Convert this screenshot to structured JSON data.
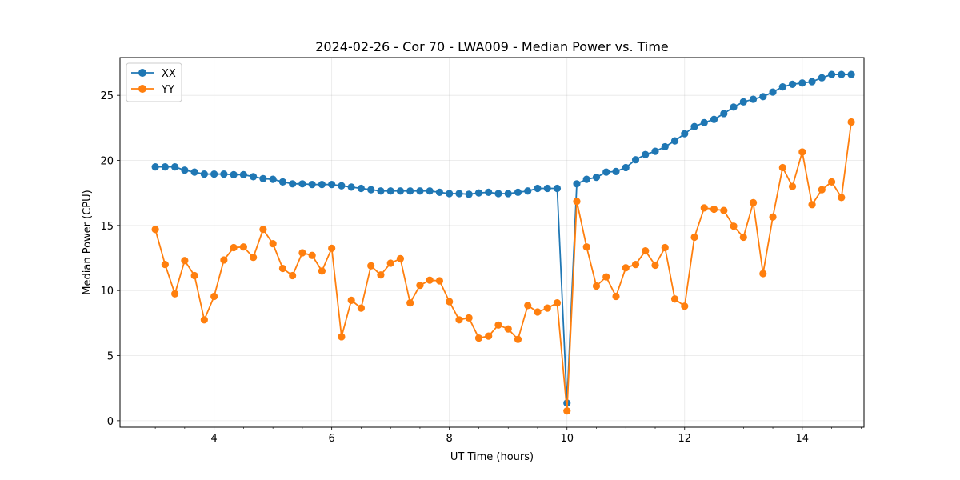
{
  "chart_data": {
    "type": "line",
    "title": "2024-02-26 - Cor 70 - LWA009 - Median Power vs. Time",
    "xlabel": "UT Time (hours)",
    "ylabel": "Median Power (CPU)",
    "xlim": [
      2.4,
      15.05
    ],
    "ylim": [
      -0.5,
      27.9
    ],
    "xticks": [
      4,
      6,
      8,
      10,
      12,
      14
    ],
    "yticks": [
      0,
      5,
      10,
      15,
      20,
      25
    ],
    "grid": true,
    "legend_position": "top-left",
    "x": [
      3.0,
      3.1667,
      3.3333,
      3.5,
      3.6667,
      3.8333,
      4.0,
      4.1667,
      4.3333,
      4.5,
      4.6667,
      4.8333,
      5.0,
      5.1667,
      5.3333,
      5.5,
      5.6667,
      5.8333,
      6.0,
      6.1667,
      6.3333,
      6.5,
      6.6667,
      6.8333,
      7.0,
      7.1667,
      7.3333,
      7.5,
      7.6667,
      7.8333,
      8.0,
      8.1667,
      8.3333,
      8.5,
      8.6667,
      8.8333,
      9.0,
      9.1667,
      9.3333,
      9.5,
      9.6667,
      9.8333,
      10.0,
      10.1667,
      10.3333,
      10.5,
      10.6667,
      10.8333,
      11.0,
      11.1667,
      11.3333,
      11.5,
      11.6667,
      11.8333,
      12.0,
      12.1667,
      12.3333,
      12.5,
      12.6667,
      12.8333,
      13.0,
      13.1667,
      13.3333,
      13.5,
      13.6667,
      13.8333,
      14.0,
      14.1667,
      14.3333,
      14.5,
      14.6667,
      14.8333
    ],
    "series": [
      {
        "name": "XX",
        "color": "#1f77b4",
        "values": [
          19.5,
          19.5,
          19.5,
          19.25,
          19.1,
          18.95,
          18.95,
          18.95,
          18.9,
          18.9,
          18.75,
          18.6,
          18.55,
          18.35,
          18.2,
          18.2,
          18.15,
          18.15,
          18.15,
          18.05,
          17.95,
          17.85,
          17.75,
          17.65,
          17.65,
          17.65,
          17.65,
          17.65,
          17.65,
          17.55,
          17.45,
          17.45,
          17.4,
          17.5,
          17.55,
          17.45,
          17.45,
          17.55,
          17.65,
          17.85,
          17.85,
          17.85,
          1.35,
          18.2,
          18.55,
          18.7,
          19.1,
          19.15,
          19.45,
          20.05,
          20.45,
          20.7,
          21.05,
          21.5,
          22.05,
          22.6,
          22.9,
          23.15,
          23.6,
          24.1,
          24.5,
          24.7,
          24.9,
          25.25,
          25.65,
          25.85,
          25.95,
          26.05,
          26.35,
          26.6,
          26.6,
          26.6
        ]
      },
      {
        "name": "YY",
        "color": "#ff7f0e",
        "values": [
          14.7,
          12.0,
          9.75,
          12.3,
          11.15,
          7.75,
          9.55,
          12.35,
          13.3,
          13.35,
          12.55,
          14.7,
          13.6,
          11.7,
          11.15,
          12.9,
          12.7,
          11.5,
          13.25,
          6.45,
          9.25,
          8.65,
          11.9,
          11.2,
          12.1,
          12.45,
          9.05,
          10.4,
          10.8,
          10.75,
          9.15,
          7.75,
          7.9,
          6.35,
          6.5,
          7.35,
          7.05,
          6.25,
          8.85,
          8.35,
          8.65,
          9.05,
          0.75,
          16.85,
          13.35,
          10.35,
          11.05,
          9.55,
          11.75,
          12.0,
          13.05,
          11.95,
          13.3,
          9.35,
          8.8,
          14.1,
          16.35,
          16.25,
          16.15,
          14.95,
          14.1,
          16.75,
          11.3,
          15.65,
          19.45,
          18.0,
          20.65,
          16.6,
          17.75,
          18.35,
          17.15,
          22.95
        ]
      }
    ]
  }
}
